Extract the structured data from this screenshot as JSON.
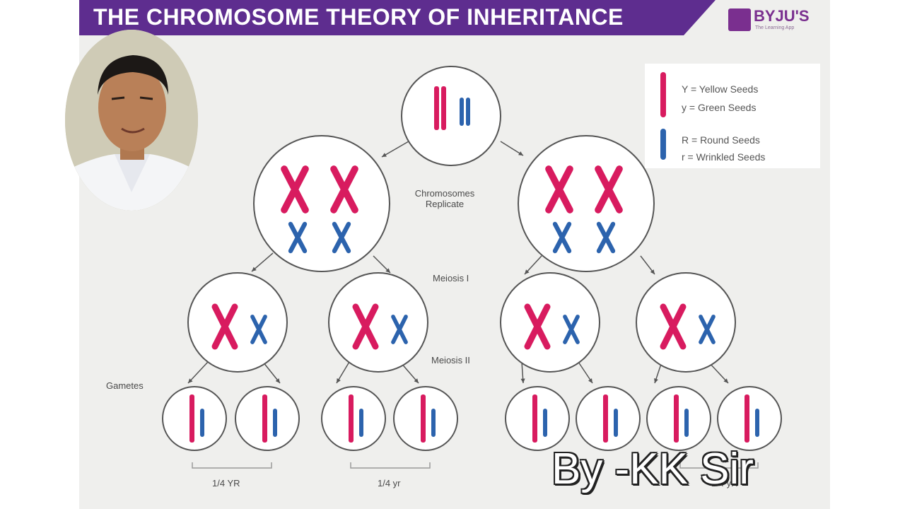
{
  "title": "THE CHROMOSOME THEORY OF INHERITANCE",
  "brand": {
    "name": "BYJU'S",
    "tagline": "The Learning App"
  },
  "legend": {
    "items": [
      {
        "text": "Y = Yellow Seeds"
      },
      {
        "text": "y = Green Seeds"
      },
      {
        "text": "R = Round Seeds"
      },
      {
        "text": "r = Wrinkled Seeds"
      }
    ]
  },
  "diagram": {
    "step_replicate": "Chromosomes Replicate",
    "step_meiosis_1": "Meiosis I",
    "step_meiosis_2": "Meiosis II",
    "gametes_label": "Gametes",
    "ratio_labels": [
      "1/4 YR",
      "1/4 yr",
      "1/4 yR"
    ]
  },
  "watermark": "By -KK Sir",
  "colors": {
    "yellow_gene": "#d81b5f",
    "round_gene": "#2c63ad",
    "banner": "#5e2d8f"
  }
}
